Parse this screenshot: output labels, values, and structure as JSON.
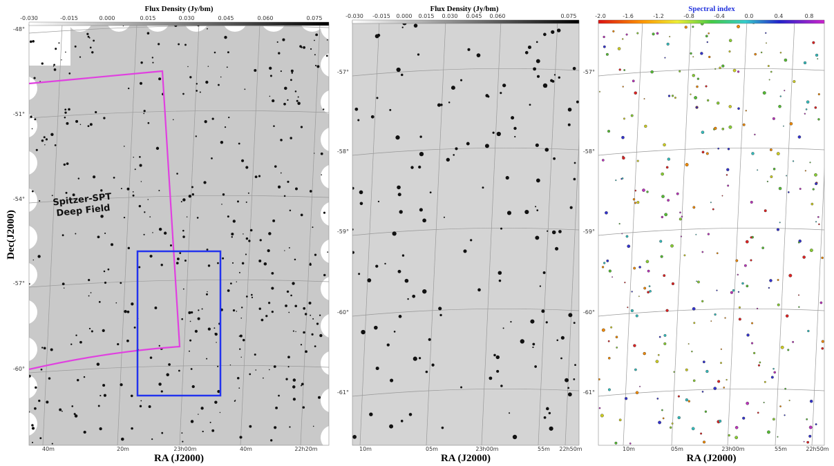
{
  "y_axis_title": "Dec(J2000)",
  "panels": [
    {
      "colorbar": {
        "title": "Flux Density (Jy/bm)",
        "ticks": [
          "-0.030",
          "-0.015",
          "0.000",
          "0.015",
          "0.030",
          "0.045",
          "0.060",
          "0.075"
        ]
      },
      "dec_ticks": [
        "-48°",
        "-51°",
        "-54°",
        "-57°",
        "-60°"
      ],
      "ra_ticks": [
        "40m",
        "20m",
        "23h00m",
        "40m",
        "22h20m"
      ],
      "x_axis_title": "RA (J2000)",
      "annotation": [
        "Spitzer-SPT",
        "Deep Field"
      ]
    },
    {
      "colorbar": {
        "title": "Flux Density (Jy/bm)",
        "ticks": [
          "-0.030",
          "-0.015",
          "0.000",
          "0.015",
          "0.030",
          "0.045",
          "0.060",
          "0.075"
        ]
      },
      "dec_ticks": [
        "-57°",
        "-58°",
        "-59°",
        "-60°",
        "-61°"
      ],
      "ra_ticks": [
        "10m",
        "05m",
        "23h00m",
        "55m",
        "22h50m"
      ],
      "x_axis_title": "RA (J2000)"
    },
    {
      "colorbar": {
        "title": "Spectral index",
        "ticks": [
          "-2.0",
          "-1.6",
          "-1.2",
          "-0.8",
          "-0.4",
          "0.0",
          "0.4",
          "0.8"
        ]
      },
      "dec_ticks": [
        "-57°",
        "-58°",
        "-59°",
        "-60°",
        "-61°"
      ],
      "ra_ticks": [
        "10m",
        "05m",
        "23h00m",
        "55m",
        "22h50m"
      ],
      "x_axis_title": "RA (J2000)"
    }
  ]
}
